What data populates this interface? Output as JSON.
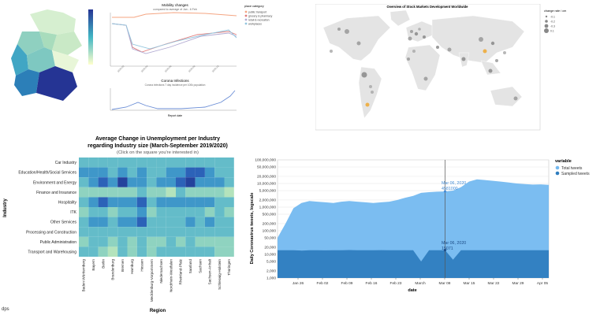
{
  "panels": {
    "germany": {
      "line_title": "Mobility changes",
      "line_subtitle": "compared to average of Jan - 6 Feb",
      "legend_title": "place category",
      "legend_items": [
        "public transport",
        "grocery & pharmacy",
        "retail & recreation",
        "workplaces"
      ],
      "lower_title": "Corona Infections",
      "lower_subtitle": "Corona infections 7 day incidence per 100k population",
      "lower_xlabel": "Report date",
      "colors": [
        "#f4a582",
        "#e07b7b",
        "#b2abd2",
        "#92c5de"
      ]
    },
    "world": {
      "title": "Overview of Stock Markets Development Worldwide",
      "legend_title": "change rate / cm",
      "legend_items": [
        "-0.1",
        "-0.2",
        "-0.3",
        "0.1"
      ]
    },
    "heatmap": {
      "title_line1": "Average Change in Unemployment per Industry",
      "title_line2": "regarding Industry size (March-September 2019/2020)",
      "subtitle": "(Click on the square you're interested in)",
      "y_label": "Industry",
      "x_label": "Region"
    },
    "footer_text": "dps"
  },
  "chart_data": [
    {
      "type": "heatmap",
      "title": "Average Change in Unemployment per Industry regarding Industry size (March-September 2019/2020)",
      "xlabel": "Region",
      "ylabel": "Industry",
      "rows": [
        "Car Industry",
        "Education/Health/Social Services",
        "Environment and Energy",
        "Finance and Insurance",
        "Hospitality",
        "ITK",
        "Other Services",
        "Processing and Construction",
        "Public Administration",
        "Transport and Warehousing"
      ],
      "columns": [
        "Baden-Württemberg",
        "Bayern",
        "Berlin",
        "Brandenburg",
        "Bremen",
        "Hamburg",
        "Hessen",
        "Mecklenburg-Vorpommern",
        "Niedersachsen",
        "Nordrhein-Westfalen",
        "Rheinland-Pfalz",
        "Saarland",
        "Sachsen",
        "Sachsen-Anhalt",
        "Schleswig-Holstein",
        "Thüringen"
      ],
      "values": [
        [
          3,
          3,
          3,
          3,
          3,
          3,
          3,
          3,
          3,
          3,
          3,
          3,
          3,
          3,
          3,
          3
        ],
        [
          4,
          4,
          4,
          3,
          4,
          3,
          4,
          3,
          3,
          4,
          4,
          5,
          5,
          4,
          3,
          3
        ],
        [
          3,
          4,
          5,
          4,
          6,
          4,
          4,
          3,
          4,
          4,
          5,
          6,
          4,
          4,
          4,
          3
        ],
        [
          2,
          2,
          2,
          2,
          2,
          2,
          3,
          2,
          2,
          1,
          3,
          2,
          2,
          2,
          2,
          1
        ],
        [
          3,
          4,
          5,
          4,
          4,
          4,
          5,
          3,
          4,
          4,
          4,
          4,
          4,
          4,
          3,
          3
        ],
        [
          2,
          3,
          3,
          2,
          3,
          3,
          4,
          2,
          3,
          3,
          3,
          3,
          3,
          2,
          3,
          2
        ],
        [
          3,
          4,
          4,
          3,
          4,
          4,
          5,
          3,
          3,
          3,
          3,
          4,
          3,
          4,
          3,
          3
        ],
        [
          3,
          3,
          3,
          3,
          3,
          3,
          3,
          3,
          3,
          3,
          3,
          3,
          3,
          3,
          3,
          3
        ],
        [
          2,
          3,
          3,
          2,
          3,
          2,
          3,
          2,
          2,
          3,
          2,
          3,
          2,
          2,
          2,
          2
        ],
        [
          3,
          3,
          2,
          1,
          3,
          2,
          3,
          2,
          3,
          3,
          3,
          3,
          3,
          3,
          2,
          2
        ]
      ]
    },
    {
      "type": "area",
      "ylabel": "Daily Coronavirus tweets, logscale",
      "xlabel": "date",
      "y_scale": "log",
      "ylim": [
        1000,
        100000000
      ],
      "y_ticks": [
        "1,000",
        "2,000",
        "5,000",
        "10,000",
        "20,000",
        "50,000",
        "100,000",
        "200,000",
        "500,000",
        "1,000,000",
        "2,000,000",
        "5,000,000",
        "10,000,000",
        "20,000,000",
        "50,000,000",
        "100,000,000"
      ],
      "x_ticks": [
        "Jan 26",
        "Feb 02",
        "Feb 09",
        "Feb 16",
        "Feb 23",
        "March",
        "Mar 08",
        "Mar 15",
        "Mar 22",
        "Mar 29",
        "Apr 05"
      ],
      "legend_title": "variable",
      "legend_position": "top-right",
      "tooltip_date": "Mar 06, 2020",
      "tooltip_total": "4581000",
      "tooltip_sampled": "15071",
      "series": [
        {
          "name": "Total tweets",
          "color": "#74b9f0",
          "values": [
            50000,
            200000,
            900000,
            1500000,
            1800000,
            1700000,
            1600000,
            1500000,
            1700000,
            1800000,
            1700000,
            1600000,
            1500000,
            1600000,
            1700000,
            2000000,
            2500000,
            3000000,
            4000000,
            4300000,
            4500000,
            4600000,
            5000000,
            7000000,
            12000000,
            15000000,
            14000000,
            13000000,
            12000000,
            11000000,
            10000000,
            9500000,
            9000000,
            9200000,
            8800000
          ]
        },
        {
          "name": "Sampled tweets",
          "color": "#2f7dbf",
          "values": [
            15000,
            15000,
            15000,
            14500,
            15000,
            15000,
            14800,
            15000,
            15000,
            15200,
            15000,
            14900,
            15000,
            15100,
            15000,
            15000,
            15000,
            15000,
            5000,
            15000,
            15000,
            15071,
            6000,
            15000,
            15000,
            15000,
            15000,
            15000,
            15000,
            15000,
            15000,
            15000,
            15000,
            15000,
            15000
          ]
        }
      ]
    }
  ]
}
